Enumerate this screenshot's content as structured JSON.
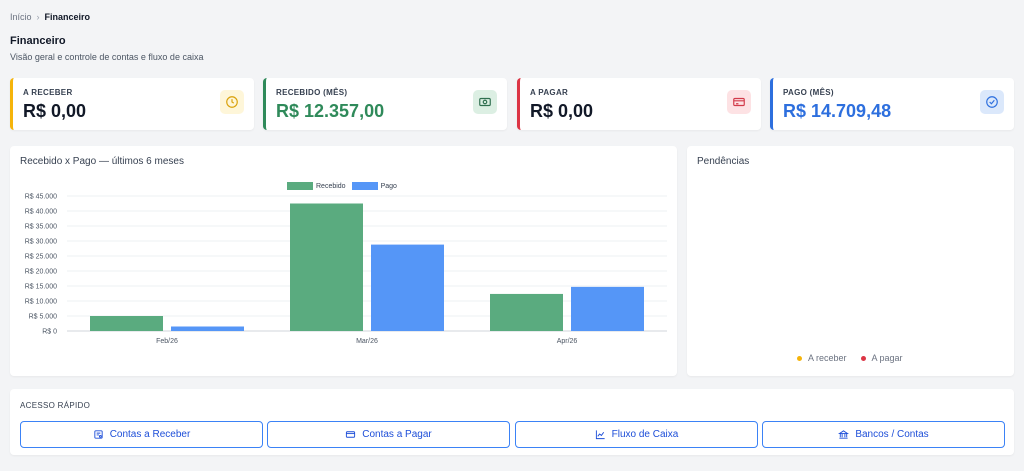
{
  "breadcrumb": {
    "home": "Início",
    "current": "Financeiro"
  },
  "header": {
    "title": "Financeiro",
    "subtitle": "Visão geral e controle de contas e fluxo de caixa"
  },
  "cards": [
    {
      "label": "A RECEBER",
      "value": "R$ 0,00",
      "accent": "#f5b40b",
      "value_color": "#111827",
      "icon": "clock-icon",
      "icon_bg": "#fef6d9",
      "icon_color": "#d9a10a"
    },
    {
      "label": "RECEBIDO (MÊS)",
      "value": "R$ 12.357,00",
      "accent": "#2f8a5a",
      "value_color": "#2f8a5a",
      "icon": "cash-icon",
      "icon_bg": "#dcefe3",
      "icon_color": "#2f6f4f"
    },
    {
      "label": "A PAGAR",
      "value": "R$ 0,00",
      "accent": "#dc3545",
      "value_color": "#111827",
      "icon": "credit-card-icon",
      "icon_bg": "#fde2e4",
      "icon_color": "#d23b4a"
    },
    {
      "label": "PAGO (MÊS)",
      "value": "R$ 14.709,48",
      "accent": "#2d6fde",
      "value_color": "#2d6fde",
      "icon": "check-circle-icon",
      "icon_bg": "#dbe8fb",
      "icon_color": "#2d6fde"
    }
  ],
  "chart_panel": {
    "title": "Recebido x Pago — últimos 6 meses"
  },
  "pending_panel": {
    "title": "Pendências",
    "legend": [
      {
        "label": "A receber",
        "color": "#f5b40b"
      },
      {
        "label": "A pagar",
        "color": "#dc3545"
      }
    ]
  },
  "quick_access": {
    "title": "ACESSO RÁPIDO",
    "buttons": [
      {
        "label": "Contas a Receber",
        "icon": "receipt-icon"
      },
      {
        "label": "Contas a Pagar",
        "icon": "credit-card-icon"
      },
      {
        "label": "Fluxo de Caixa",
        "icon": "line-chart-icon"
      },
      {
        "label": "Bancos / Contas",
        "icon": "bank-icon"
      }
    ]
  },
  "chart_data": {
    "type": "bar",
    "categories": [
      "Feb/26",
      "Mar/26",
      "Apr/26"
    ],
    "series": [
      {
        "name": "Recebido",
        "values": [
          5000,
          42500,
          12357
        ],
        "color": "#5aab7f"
      },
      {
        "name": "Pago",
        "values": [
          1500,
          28800,
          14709.48
        ],
        "color": "#5596f7"
      }
    ],
    "y_ticks": [
      "R$ 0",
      "R$ 5.000",
      "R$ 10.000",
      "R$ 15.000",
      "R$ 20.000",
      "R$ 25.000",
      "R$ 30.000",
      "R$ 35.000",
      "R$ 40.000",
      "R$ 45.000"
    ],
    "ylim": [
      0,
      45000
    ],
    "legend_position": "top-center",
    "grid": true
  }
}
